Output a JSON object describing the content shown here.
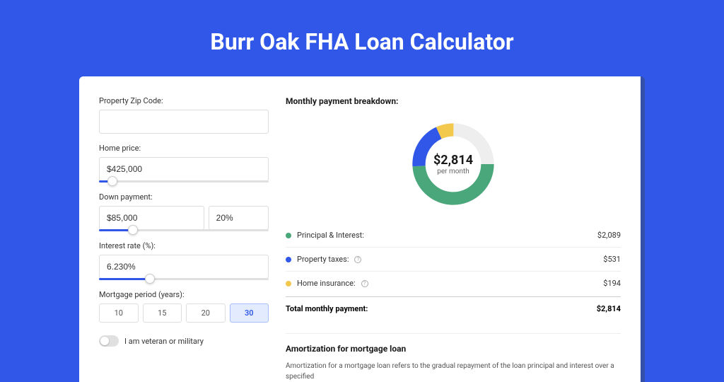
{
  "page": {
    "title": "Burr Oak FHA Loan Calculator",
    "background_color": "#3057e8",
    "card_shadow_color": "#3450a8"
  },
  "form": {
    "zip": {
      "label": "Property Zip Code:",
      "value": ""
    },
    "home_price": {
      "label": "Home price:",
      "value": "$425,000",
      "slider_pct": 8
    },
    "down_payment": {
      "label": "Down payment:",
      "amount": "$85,000",
      "percent": "20%",
      "slider_pct": 20
    },
    "interest_rate": {
      "label": "Interest rate (%):",
      "value": "6.230%",
      "slider_pct": 30
    },
    "mortgage_period": {
      "label": "Mortgage period (years):",
      "options": [
        "10",
        "15",
        "20",
        "30"
      ],
      "selected": "30"
    },
    "veteran": {
      "label": "I am veteran or military",
      "checked": false
    }
  },
  "breakdown": {
    "title": "Monthly payment breakdown:",
    "donut": {
      "center_value": "$2,814",
      "center_label": "per month",
      "segments": [
        {
          "label": "Principal & Interest:",
          "value": "$2,089",
          "color": "#4aa77b",
          "pct": 74
        },
        {
          "label": "Property taxes:",
          "value": "$531",
          "color": "#3057e8",
          "pct": 19,
          "info": true
        },
        {
          "label": "Home insurance:",
          "value": "$194",
          "color": "#f2c94c",
          "pct": 7,
          "info": true
        }
      ]
    },
    "total": {
      "label": "Total monthly payment:",
      "value": "$2,814"
    }
  },
  "amortization": {
    "title": "Amortization for mortgage loan",
    "body": "Amortization for a mortgage loan refers to the gradual repayment of the loan principal and interest over a specified"
  }
}
